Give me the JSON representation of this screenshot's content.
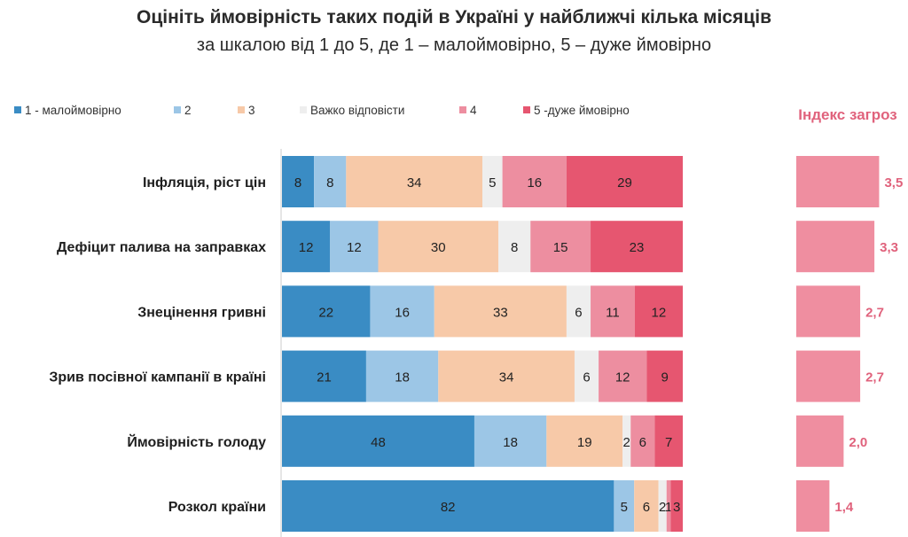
{
  "title": "Оцініть ймовірність таких подій в Україні у найближчі кілька місяців",
  "subtitle": "за шкалою від 1 до 5, де 1 – малоймовірно, 5 – дуже ймовірно",
  "chart_data": [
    {
      "type": "bar",
      "orientation": "horizontal",
      "stacked": true,
      "categories": [
        "Інфляція, ріст цін",
        "Дефіцит палива на заправках",
        "Знецінення гривні",
        "Зрив посівної кампанії в країні",
        "Ймовірність голоду",
        "Розкол країни"
      ],
      "series": [
        {
          "name": "1 - малоймовірно",
          "color": "#3a8cc4",
          "values": [
            8,
            12,
            22,
            21,
            48,
            82
          ]
        },
        {
          "name": "2",
          "color": "#9cc6e6",
          "values": [
            8,
            12,
            16,
            18,
            18,
            5
          ]
        },
        {
          "name": "3",
          "color": "#f7c9a8",
          "values": [
            34,
            30,
            33,
            34,
            19,
            6
          ]
        },
        {
          "name": "Важко відповісти",
          "color": "#eeeeee",
          "values": [
            5,
            8,
            6,
            6,
            2,
            2
          ]
        },
        {
          "name": "4",
          "color": "#ed8ea0",
          "values": [
            16,
            15,
            11,
            12,
            6,
            1
          ]
        },
        {
          "name": "5 -дуже ймовірно",
          "color": "#e65670",
          "values": [
            29,
            23,
            12,
            9,
            7,
            3
          ]
        }
      ],
      "legend_position": "top-left",
      "grid": false
    },
    {
      "type": "bar",
      "orientation": "horizontal",
      "title": "Індекс загроз",
      "color": "#ef8ea0",
      "categories": [
        "Інфляція, ріст цін",
        "Дефіцит палива на заправках",
        "Знецінення гривні",
        "Зрив посівної кампанії в країні",
        "Ймовірність голоду",
        "Розкол країни"
      ],
      "values": [
        "3,5",
        "3,3",
        "2,7",
        "2,7",
        "2,0",
        "1,4"
      ],
      "xlim": [
        0,
        5
      ]
    }
  ]
}
